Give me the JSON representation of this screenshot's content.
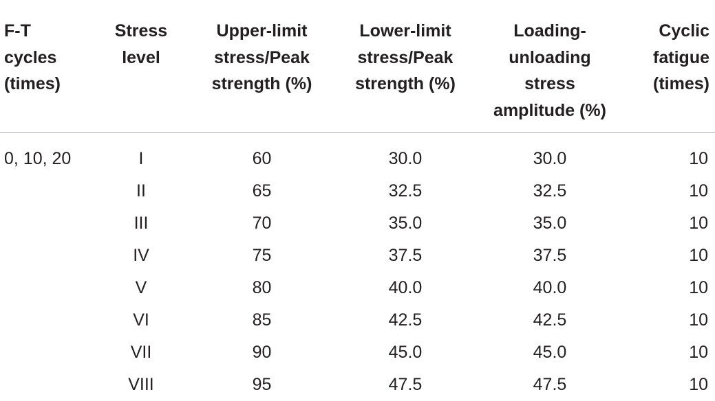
{
  "table": {
    "headers": [
      "F-T\ncycles\n(times)",
      "Stress\nlevel",
      "Upper-limit\nstress/Peak\nstrength (%)",
      "Lower-limit\nstress/Peak\nstrength (%)",
      "Loading-\nunloading\nstress\namplitude (%)",
      "Cyclic\nfatigue\n(times)"
    ],
    "rows": [
      [
        "0, 10, 20",
        "I",
        "60",
        "30.0",
        "30.0",
        "10"
      ],
      [
        "",
        "II",
        "65",
        "32.5",
        "32.5",
        "10"
      ],
      [
        "",
        "III",
        "70",
        "35.0",
        "35.0",
        "10"
      ],
      [
        "",
        "IV",
        "75",
        "37.5",
        "37.5",
        "10"
      ],
      [
        "",
        "V",
        "80",
        "40.0",
        "40.0",
        "10"
      ],
      [
        "",
        "VI",
        "85",
        "42.5",
        "42.5",
        "10"
      ],
      [
        "",
        "VII",
        "90",
        "45.0",
        "45.0",
        "10"
      ],
      [
        "",
        "VIII",
        "95",
        "47.5",
        "47.5",
        "10"
      ]
    ]
  }
}
